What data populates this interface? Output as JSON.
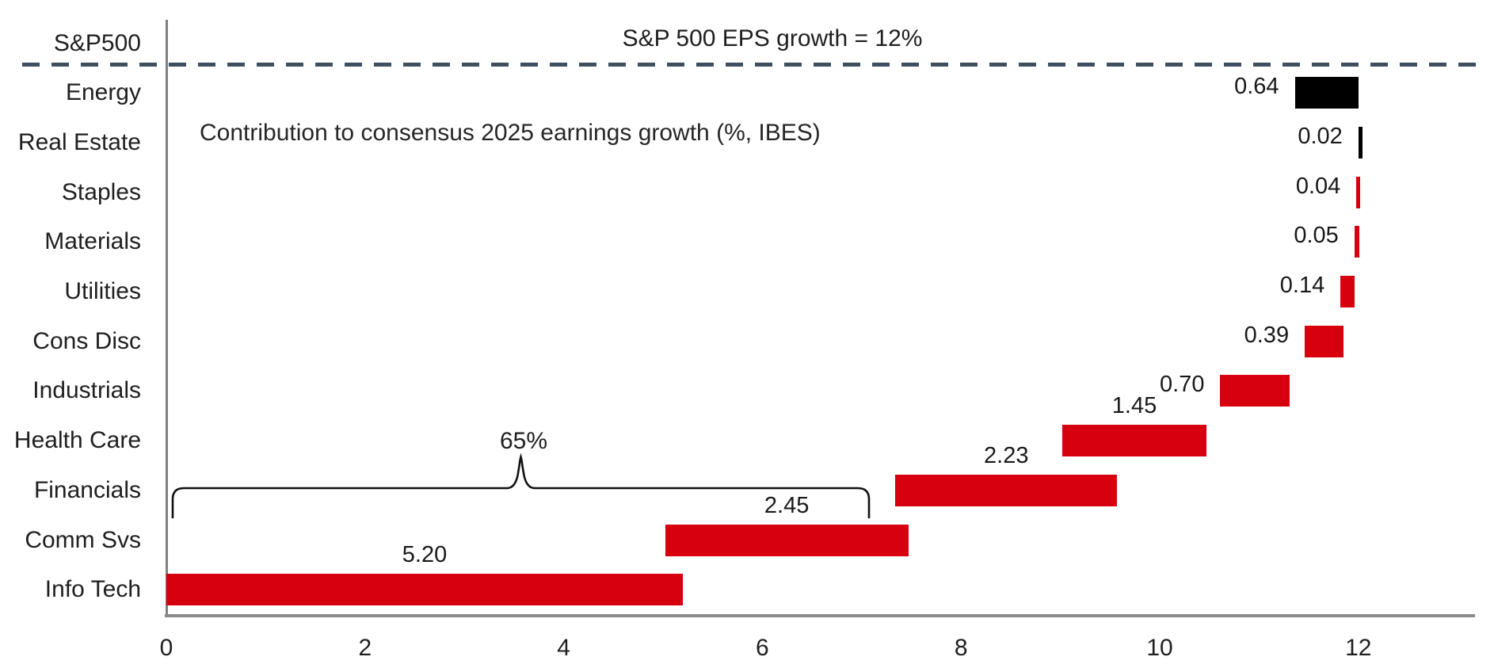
{
  "chart_data": {
    "type": "bar",
    "variant": "horizontal-waterfall",
    "title": "Contribution to consensus 2025 earnings growth (%, IBES)",
    "reference_line": {
      "label": "S&P 500 EPS growth = 12%",
      "style": "dashed",
      "color": "#3f4f5f",
      "row": "S&P500"
    },
    "total_row_label": "S&P500",
    "x_axis": {
      "min": 0,
      "max": 13.36,
      "ticks": [
        "0",
        "2",
        "4",
        "6",
        "8",
        "10",
        "12"
      ],
      "tick_values": [
        0,
        2,
        4,
        6,
        8,
        10,
        12
      ],
      "grid": false
    },
    "rows": [
      {
        "label": "Energy",
        "value": 0.64,
        "value_label": "0.64",
        "bar_start": 11.36,
        "color": "#000000",
        "label_position": "left"
      },
      {
        "label": "Real Estate",
        "value": 0.02,
        "value_label": "0.02",
        "bar_start": 12.0,
        "color": "#000000",
        "label_position": "left"
      },
      {
        "label": "Staples",
        "value": 0.04,
        "value_label": "0.04",
        "bar_start": 11.98,
        "color": "#d7000f",
        "label_position": "left"
      },
      {
        "label": "Materials",
        "value": 0.05,
        "value_label": "0.05",
        "bar_start": 11.96,
        "color": "#d7000f",
        "label_position": "left"
      },
      {
        "label": "Utilities",
        "value": 0.14,
        "value_label": "0.14",
        "bar_start": 11.82,
        "color": "#d7000f",
        "label_position": "left"
      },
      {
        "label": "Cons Disc",
        "value": 0.39,
        "value_label": "0.39",
        "bar_start": 11.46,
        "color": "#d7000f",
        "label_position": "left"
      },
      {
        "label": "Industrials",
        "value": 0.7,
        "value_label": "0.70",
        "bar_start": 10.61,
        "color": "#d7000f",
        "label_position": "left"
      },
      {
        "label": "Health Care",
        "value": 1.45,
        "value_label": "1.45",
        "bar_start": 9.02,
        "color": "#d7000f",
        "label_position": "above"
      },
      {
        "label": "Financials",
        "value": 2.23,
        "value_label": "2.23",
        "bar_start": 7.34,
        "color": "#d7000f",
        "label_position": "above"
      },
      {
        "label": "Comm Svs",
        "value": 2.45,
        "value_label": "2.45",
        "bar_start": 5.02,
        "color": "#d7000f",
        "label_position": "above"
      },
      {
        "label": "Info Tech",
        "value": 5.2,
        "value_label": "5.20",
        "bar_start": 0.0,
        "color": "#d7000f",
        "label_position": "above"
      }
    ],
    "annotation_brace": {
      "label": "65%",
      "from": 0.06,
      "to": 7.07
    },
    "colors": {
      "bar_red": "#d7000f",
      "bar_black": "#000000",
      "dashed_line": "#3f4f5f",
      "axis": "#8c8c8c",
      "text": "#1f1f1f"
    }
  }
}
